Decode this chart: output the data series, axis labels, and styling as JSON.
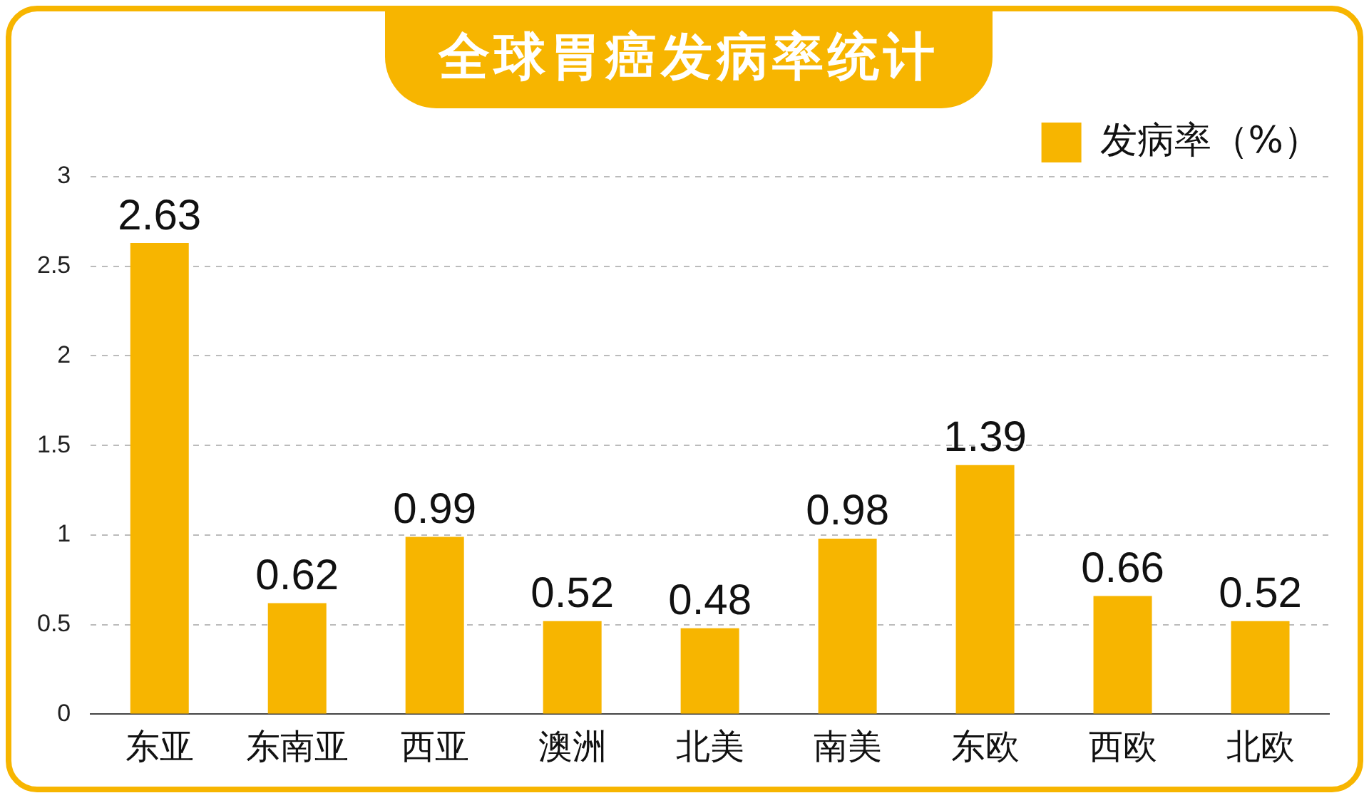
{
  "chart_data": {
    "type": "bar",
    "title": "全球胃癌发病率统计",
    "categories": [
      "东亚",
      "东南亚",
      "西亚",
      "澳洲",
      "北美",
      "南美",
      "东欧",
      "西欧",
      "北欧"
    ],
    "series": [
      {
        "name": "发病率（%）",
        "color": "#f7b500",
        "values": [
          2.63,
          0.62,
          0.99,
          0.52,
          0.48,
          0.98,
          1.39,
          0.66,
          0.52
        ]
      }
    ],
    "ylim": [
      0,
      3
    ],
    "yticks": [
      0,
      0.5,
      1,
      1.5,
      2,
      2.5,
      3
    ],
    "grid": "y",
    "legend": "top right",
    "data_labels": true
  }
}
